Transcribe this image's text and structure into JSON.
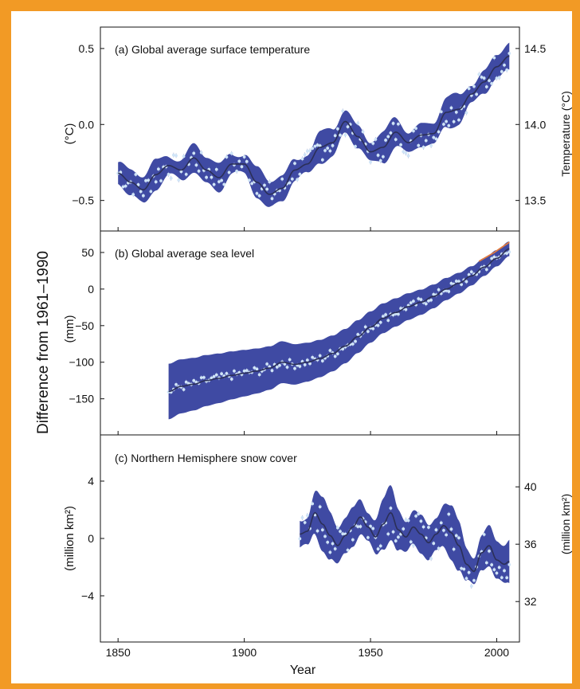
{
  "colors": {
    "frame": "#f29a25",
    "band": "#3f4aa3",
    "smooth_line": "#2b2f57",
    "dots": "#cfe4f7",
    "satellite_line": "#e07a3f",
    "axis": "#111111"
  },
  "chart_data": {
    "type": "line",
    "shared_ylabel": "Difference from 1961–1990",
    "xlabel": "Year",
    "x_ticks": [
      1850,
      1900,
      1950,
      2000
    ],
    "xlim": [
      1843,
      2009
    ],
    "panels": [
      {
        "id": "a",
        "title": "(a) Global average surface temperature",
        "ylabel_left": "(°C)",
        "ylabel_right": "Temperature (°C)",
        "ylim": [
          -0.68,
          0.62
        ],
        "yticks_left": [
          0.5,
          0.0,
          -0.5
        ],
        "ytick_labels_left": [
          "0.5",
          "0.0",
          "−0.5"
        ],
        "yticks_right_values": [
          14.5,
          14.0,
          13.5
        ],
        "right_axis_offset": 14.0,
        "smooth": {
          "x": [
            1850,
            1855,
            1860,
            1865,
            1870,
            1875,
            1880,
            1885,
            1890,
            1895,
            1900,
            1905,
            1910,
            1915,
            1920,
            1925,
            1930,
            1935,
            1940,
            1945,
            1950,
            1955,
            1960,
            1965,
            1970,
            1975,
            1980,
            1985,
            1990,
            1995,
            2000,
            2005
          ],
          "y": [
            -0.32,
            -0.38,
            -0.43,
            -0.33,
            -0.27,
            -0.3,
            -0.22,
            -0.3,
            -0.35,
            -0.26,
            -0.26,
            -0.38,
            -0.46,
            -0.42,
            -0.3,
            -0.26,
            -0.15,
            -0.12,
            0.02,
            -0.08,
            -0.18,
            -0.15,
            -0.05,
            -0.12,
            -0.07,
            -0.06,
            0.08,
            0.1,
            0.2,
            0.28,
            0.38,
            0.45
          ]
        },
        "band_half_width": 0.1,
        "annual_spread": 0.09
      },
      {
        "id": "b",
        "title": "(b) Global average sea level",
        "ylabel_left": "(mm)",
        "ylim": [
          -195,
          75
        ],
        "yticks_left": [
          50,
          0,
          -50,
          -100,
          -150
        ],
        "ytick_labels_left": [
          "50",
          "0",
          "−50",
          "−100",
          "−150"
        ],
        "smooth": {
          "x": [
            1870,
            1875,
            1880,
            1885,
            1890,
            1895,
            1900,
            1905,
            1910,
            1915,
            1920,
            1925,
            1930,
            1935,
            1940,
            1945,
            1950,
            1955,
            1960,
            1965,
            1970,
            1975,
            1980,
            1985,
            1990,
            1995,
            2000,
            2005
          ],
          "y": [
            -140,
            -133,
            -130,
            -125,
            -122,
            -118,
            -115,
            -112,
            -108,
            -100,
            -103,
            -100,
            -95,
            -88,
            -78,
            -65,
            -52,
            -40,
            -32,
            -24,
            -18,
            -10,
            0,
            8,
            18,
            30,
            42,
            55
          ]
        },
        "band_half_width_start": 38,
        "band_half_width_end": 10,
        "annual_spread": 6,
        "satellite": {
          "x": [
            1993,
            1996,
            1999,
            2002,
            2005
          ],
          "y": [
            38,
            44,
            50,
            57,
            64
          ]
        }
      },
      {
        "id": "c",
        "title": "(c) Northern Hemisphere snow cover",
        "ylabel_left": "(million km²)",
        "ylabel_right": "(million km²)",
        "ylim": [
          -7,
          7
        ],
        "yticks_left": [
          4,
          0,
          -4
        ],
        "ytick_labels_left": [
          "4",
          "0",
          "−4"
        ],
        "yticks_right_values": [
          40,
          36,
          32
        ],
        "right_axis_offset": 36.4,
        "smooth": {
          "x": [
            1922,
            1925,
            1928,
            1931,
            1934,
            1937,
            1940,
            1943,
            1946,
            1949,
            1952,
            1955,
            1958,
            1961,
            1964,
            1967,
            1970,
            1973,
            1976,
            1979,
            1982,
            1985,
            1988,
            1991,
            1994,
            1997,
            2000,
            2003,
            2005
          ],
          "y": [
            0.3,
            0.5,
            1.8,
            1.0,
            0.2,
            -0.5,
            0.2,
            0.8,
            1.5,
            0.8,
            0.1,
            1.0,
            1.8,
            0.6,
            0.1,
            0.8,
            0.3,
            -0.3,
            0.3,
            0.9,
            0.4,
            -0.5,
            -1.8,
            -2.3,
            -1.0,
            -0.5,
            -1.5,
            -1.8,
            -1.6
          ]
        },
        "band_half_width": 1.7,
        "annual_spread": 1.3
      }
    ]
  }
}
